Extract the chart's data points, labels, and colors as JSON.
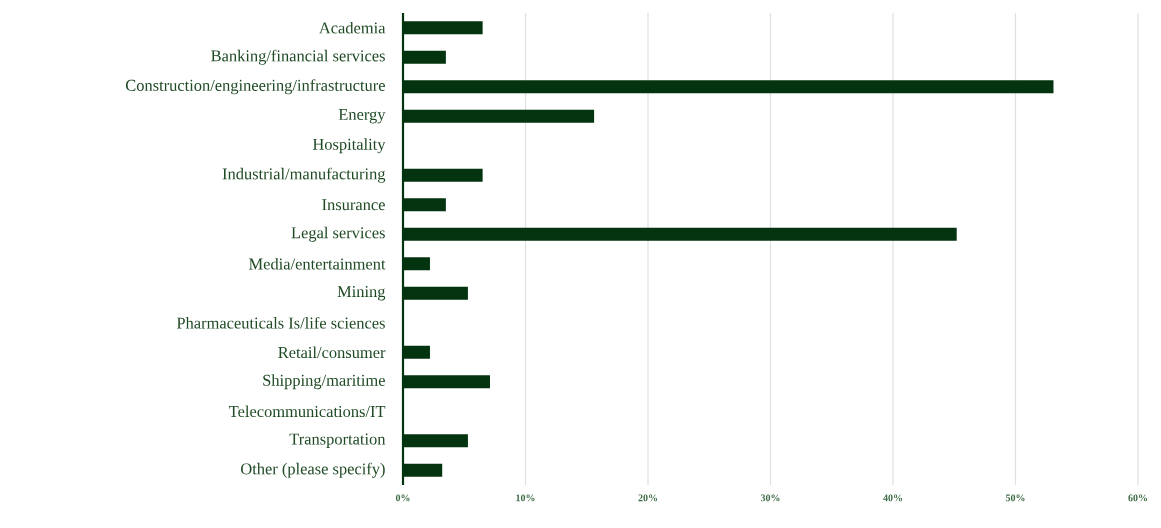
{
  "chart_data": {
    "type": "bar",
    "orientation": "horizontal",
    "categories": [
      "Academia",
      "Banking/financial services",
      "Construction/engineering/infrastructure",
      "Energy",
      "Hospitality",
      "Industrial/manufacturing",
      "Insurance",
      "Legal services",
      "Media/entertainment",
      "Mining",
      "Pharmaceuticals Is/life sciences",
      "Retail/consumer",
      "Shipping/maritime",
      "Telecommunications/IT",
      "Transportation",
      "Other (please specify)"
    ],
    "values": [
      6.5,
      3.5,
      53.1,
      15.6,
      0,
      6.5,
      3.5,
      45.2,
      2.2,
      5.3,
      0,
      2.2,
      7.1,
      0,
      5.3,
      3.2
    ],
    "color": "#03330f",
    "xlim": [
      0,
      60
    ],
    "xticks": [
      {
        "value": 0,
        "label": "0%"
      },
      {
        "value": 10,
        "label": "10%"
      },
      {
        "value": 20,
        "label": "20%"
      },
      {
        "value": 30,
        "label": "30%"
      },
      {
        "value": 40,
        "label": "40%"
      },
      {
        "value": 50,
        "label": "50%"
      },
      {
        "value": 60,
        "label": "60%"
      }
    ],
    "grid": "x"
  }
}
